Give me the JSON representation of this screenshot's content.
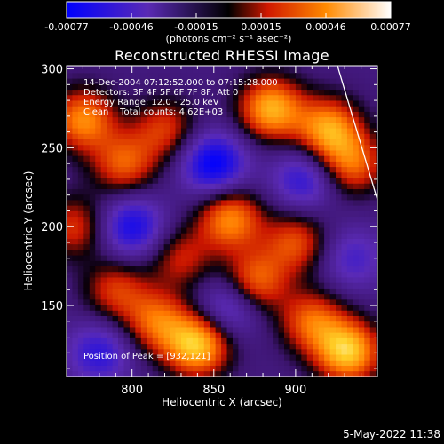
{
  "chart_data": {
    "type": "heatmap",
    "title": "Reconstructed RHESSI Image",
    "xlabel": "Heliocentric X (arcsec)",
    "ylabel": "Heliocentric Y (arcsec)",
    "xlim": [
      760,
      950
    ],
    "ylim": [
      105,
      302
    ],
    "x_ticks": [
      800,
      850,
      900
    ],
    "y_ticks": [
      150,
      200,
      250,
      300
    ],
    "colorbar": {
      "ticks": [
        "-0.00077",
        "-0.00046",
        "-0.00015",
        "0.00015",
        "0.00046",
        "0.00077"
      ],
      "range": [
        -0.00077,
        0.00077
      ],
      "units_label": "(photons cm⁻² s⁻¹ asec⁻²)",
      "colors": [
        "#0000ff",
        "#5a2ab5",
        "#000000",
        "#e02000",
        "#ff9a00",
        "#ffffff"
      ]
    },
    "annotations": {
      "time_range": "14-Dec-2004 07:12:52.000 to 07:15:28.000",
      "detectors": "Detectors: 3F 4F 5F 6F 7F 8F, Att 0",
      "energy_range": "Energy Range: 12.0 - 25.0 keV",
      "method_counts": "Clean    Total counts: 4.62E+03",
      "peak_label": "Position of Peak = [932,121]"
    },
    "bright_regions": [
      {
        "x": 770,
        "y": 268,
        "v": 0.0006
      },
      {
        "x": 795,
        "y": 240,
        "v": 0.00048
      },
      {
        "x": 820,
        "y": 262,
        "v": 0.0004
      },
      {
        "x": 830,
        "y": 180,
        "v": 0.00035
      },
      {
        "x": 840,
        "y": 125,
        "v": 0.00077
      },
      {
        "x": 815,
        "y": 140,
        "v": 0.0005
      },
      {
        "x": 790,
        "y": 160,
        "v": 0.0004
      },
      {
        "x": 860,
        "y": 205,
        "v": 0.0006
      },
      {
        "x": 875,
        "y": 165,
        "v": 0.00055
      },
      {
        "x": 900,
        "y": 190,
        "v": 0.00045
      },
      {
        "x": 885,
        "y": 275,
        "v": 0.0007
      },
      {
        "x": 920,
        "y": 262,
        "v": 0.00065
      },
      {
        "x": 935,
        "y": 240,
        "v": 0.0005
      },
      {
        "x": 932,
        "y": 121,
        "v": 0.00077
      },
      {
        "x": 910,
        "y": 140,
        "v": 0.0005
      },
      {
        "x": 765,
        "y": 200,
        "v": 0.0004
      }
    ],
    "dark_regions": [
      {
        "x": 800,
        "y": 200,
        "v": -0.0005
      },
      {
        "x": 850,
        "y": 240,
        "v": -0.0006
      },
      {
        "x": 905,
        "y": 230,
        "v": -0.0004
      },
      {
        "x": 860,
        "y": 150,
        "v": -0.0004
      },
      {
        "x": 780,
        "y": 120,
        "v": -0.0004
      },
      {
        "x": 935,
        "y": 180,
        "v": -0.0003
      }
    ]
  },
  "footer": {
    "timestamp": "5-May-2022 11:38"
  }
}
